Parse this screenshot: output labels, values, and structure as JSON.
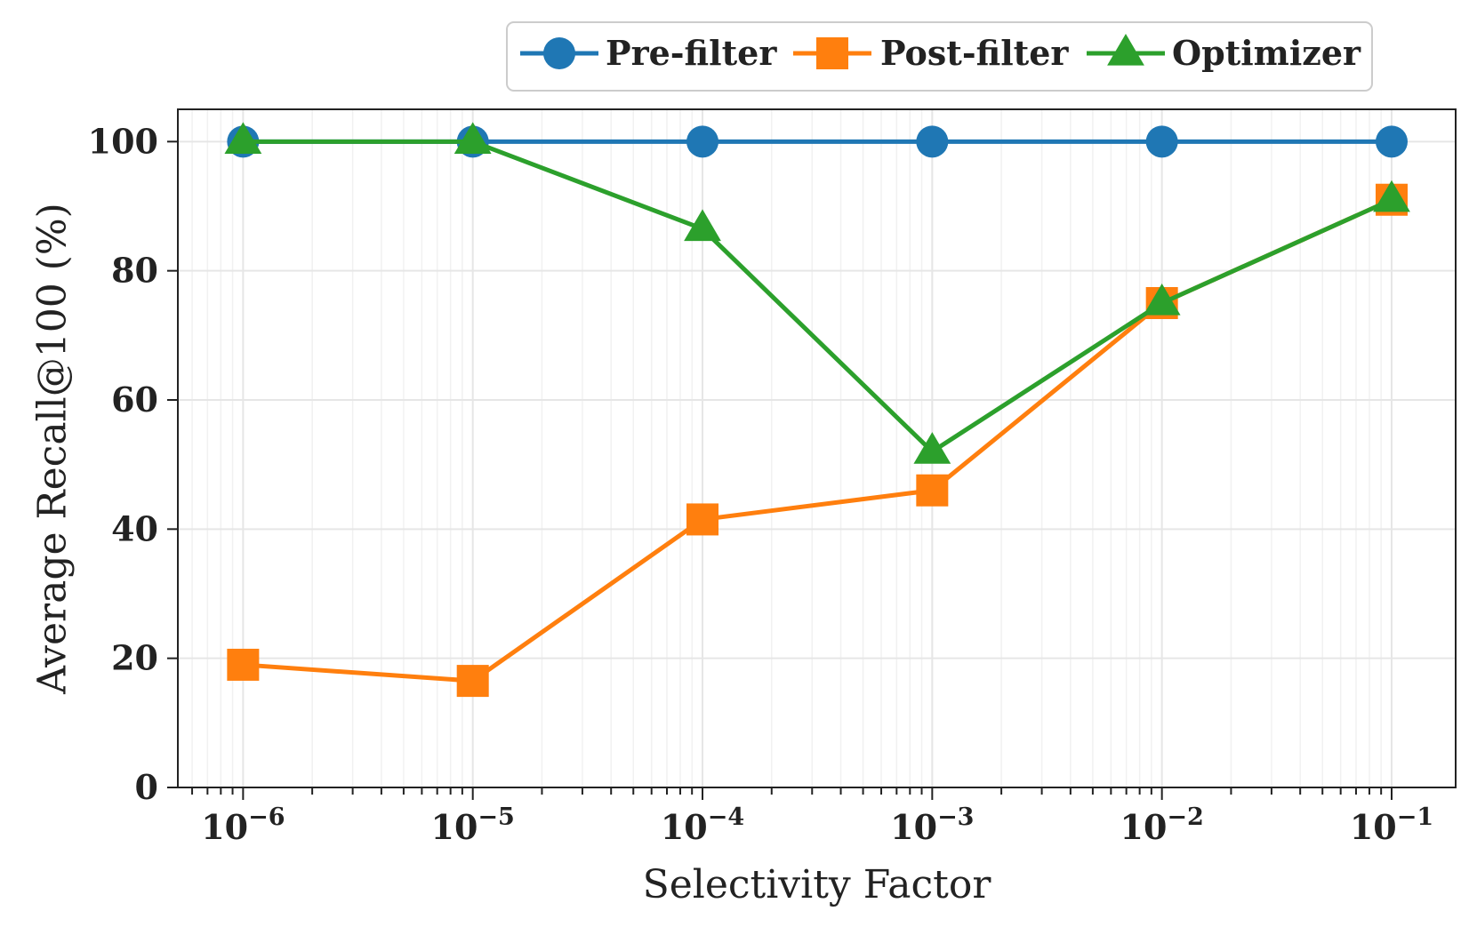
{
  "chart_data": {
    "type": "line",
    "xscale": "log",
    "x": [
      1e-06,
      1e-05,
      0.0001,
      0.001,
      0.01,
      0.1
    ],
    "x_tick_labels": [
      {
        "base": "10",
        "exp": "−6"
      },
      {
        "base": "10",
        "exp": "−5"
      },
      {
        "base": "10",
        "exp": "−4"
      },
      {
        "base": "10",
        "exp": "−3"
      },
      {
        "base": "10",
        "exp": "−2"
      },
      {
        "base": "10",
        "exp": "−1"
      }
    ],
    "y_ticks": [
      0,
      20,
      40,
      60,
      80,
      100
    ],
    "y_tick_labels": [
      "0",
      "20",
      "40",
      "60",
      "80",
      "100"
    ],
    "ylim": [
      0,
      105
    ],
    "xlim": [
      5.2e-07,
      0.19
    ],
    "xlabel": "Selectivity Factor",
    "ylabel": "Average Recall@100 (%)",
    "grid": true,
    "legend_position": "top-right, above plot",
    "series": [
      {
        "name": "Pre-filter",
        "color": "#1f77b4",
        "marker": "circle",
        "values": [
          100,
          100,
          100,
          100,
          100,
          100
        ]
      },
      {
        "name": "Post-filter",
        "color": "#ff7f0e",
        "marker": "square",
        "values": [
          19,
          16.5,
          41.5,
          46,
          75,
          91
        ]
      },
      {
        "name": "Optimizer",
        "color": "#2ca02c",
        "marker": "triangle",
        "values": [
          100,
          100,
          86.5,
          52,
          75,
          91
        ]
      }
    ]
  }
}
